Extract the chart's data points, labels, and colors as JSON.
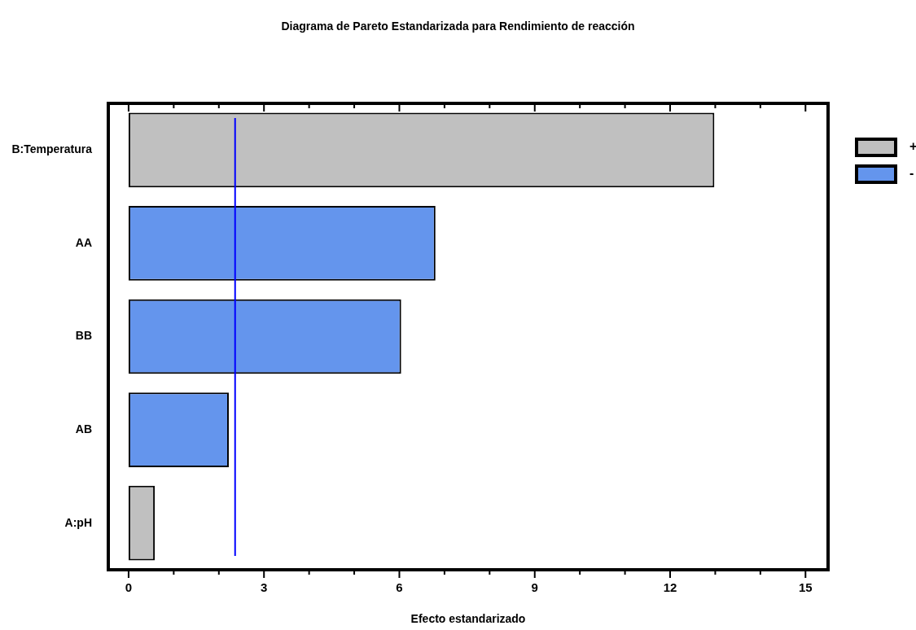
{
  "chart_data": {
    "type": "bar",
    "orientation": "horizontal",
    "title": "Diagrama de Pareto Estandarizada para Rendimiento de reacción",
    "xlabel": "Efecto estandarizado",
    "categories": [
      "B:Temperatura",
      "AA",
      "BB",
      "AB",
      "A:pH"
    ],
    "series": [
      {
        "name": "+",
        "color": "#c0c0c0",
        "values": [
          12.98,
          null,
          null,
          null,
          0.58
        ]
      },
      {
        "name": "-",
        "color": "#6495ed",
        "values": [
          null,
          6.8,
          6.04,
          2.22,
          null
        ]
      }
    ],
    "xlim": [
      -0.45,
      15.5
    ],
    "xticks": [
      0,
      {
        "value": 1,
        "label": null
      },
      {
        "value": 2,
        "label": null
      },
      3,
      {
        "value": 4,
        "label": null
      },
      {
        "value": 5,
        "label": null
      },
      6,
      {
        "value": 7,
        "label": null
      },
      {
        "value": 8,
        "label": null
      },
      9,
      {
        "value": 10,
        "label": null
      },
      {
        "value": 11,
        "label": null
      },
      12,
      {
        "value": 13,
        "label": null
      },
      {
        "value": 14,
        "label": null
      },
      15
    ],
    "ref_lines": [
      {
        "axis": "x",
        "value": 2.36,
        "color": "#0000ff"
      }
    ],
    "grid": false,
    "legend": "top right"
  }
}
